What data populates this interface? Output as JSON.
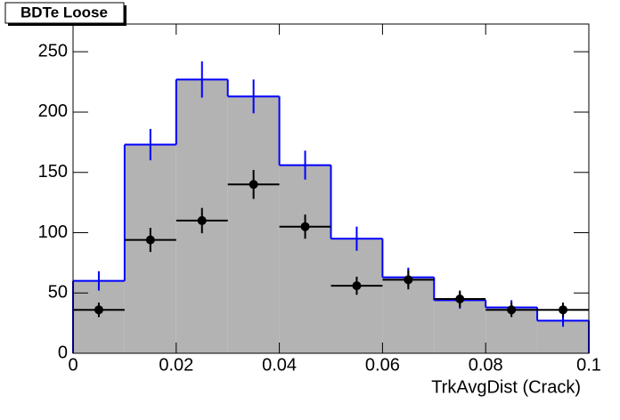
{
  "chart_data": {
    "type": "histogram",
    "title": "BDTe Loose",
    "x_label": "TrkAvgDist (Crack)",
    "bins": [
      0,
      0.01,
      0.02,
      0.03,
      0.04,
      0.05,
      0.06,
      0.07,
      0.08,
      0.09,
      0.1
    ],
    "series": [
      {
        "color": "#0000ff",
        "fill": "#b3b3b3",
        "style": "filled-step",
        "values": [
          60,
          173,
          227,
          213,
          156,
          95,
          63,
          44,
          38,
          27
        ],
        "errors": [
          8,
          13,
          15,
          14,
          12,
          10,
          8,
          7,
          6,
          5
        ]
      },
      {
        "color": "#000000",
        "style": "points",
        "values": [
          36,
          94,
          110,
          140,
          105,
          56,
          61,
          45,
          36,
          36
        ],
        "errors": [
          6,
          10,
          10.5,
          12,
          10,
          7.5,
          8,
          7,
          6,
          6
        ]
      }
    ],
    "xlim": [
      0,
      0.1
    ],
    "ylim": [
      0,
      273
    ],
    "xticks": [
      0,
      0.02,
      0.04,
      0.06,
      0.08,
      0.1
    ],
    "yticks": [
      0,
      50,
      100,
      150,
      200,
      250
    ]
  }
}
